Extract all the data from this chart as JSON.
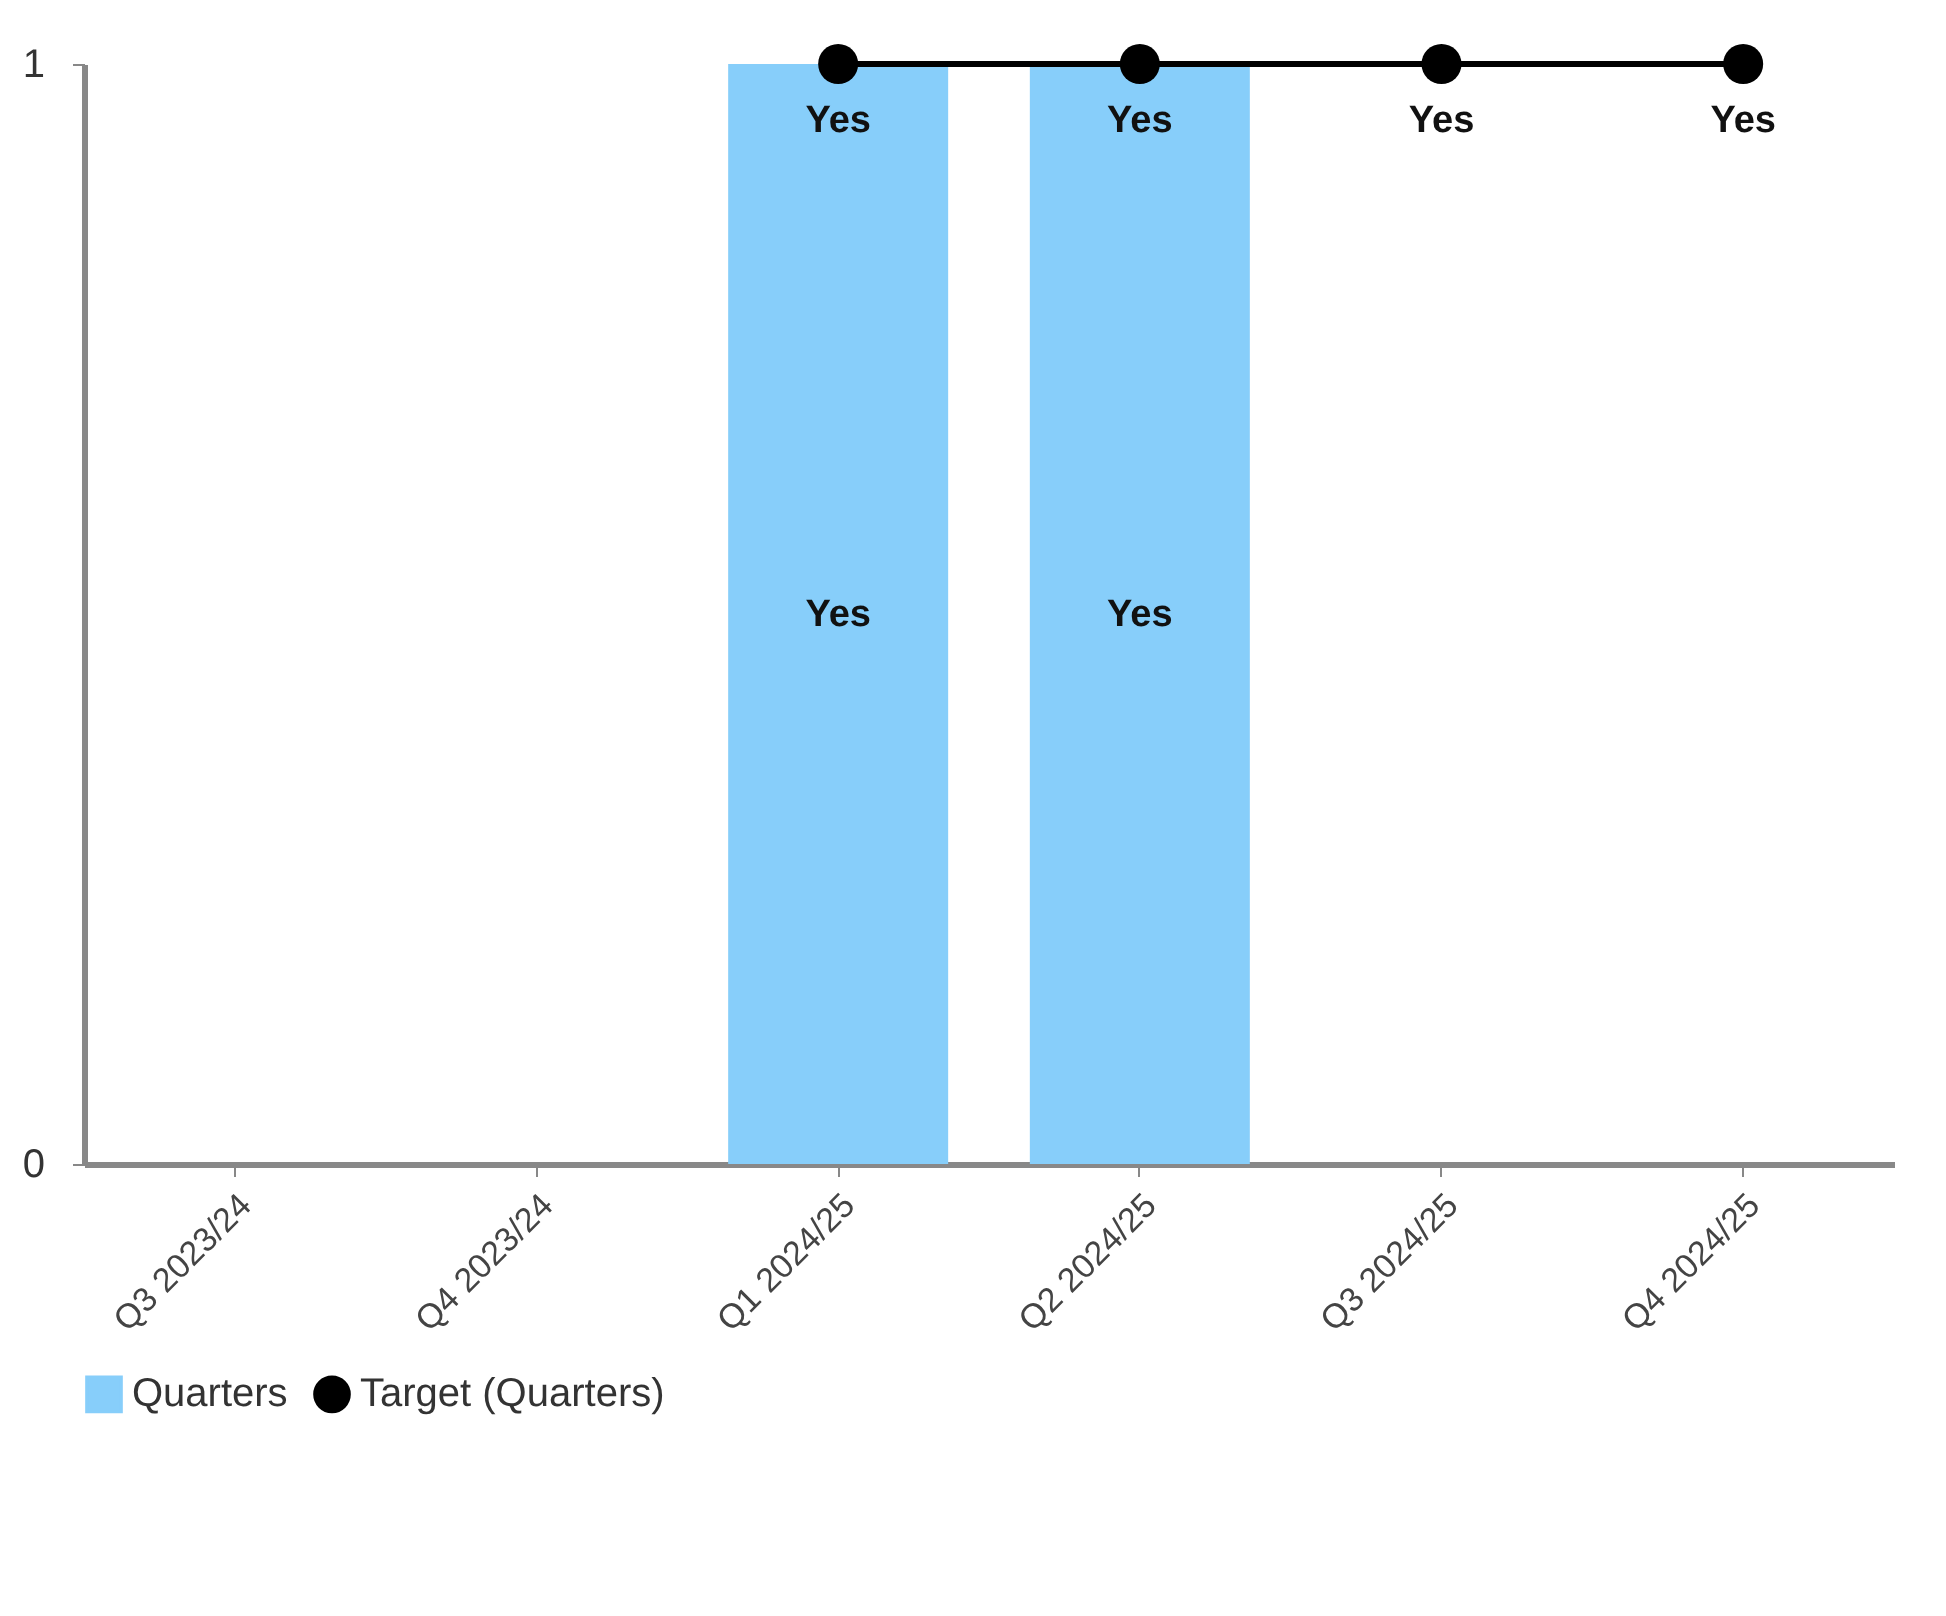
{
  "chart_data": {
    "type": "bar",
    "categories": [
      "Q3 2023/24",
      "Q4 2023/24",
      "Q1 2024/25",
      "Q2 2024/25",
      "Q3 2024/25",
      "Q4 2024/25"
    ],
    "series": [
      {
        "name": "Quarters",
        "color": "#87cefa",
        "values": [
          null,
          null,
          1,
          1,
          null,
          null
        ],
        "value_labels": [
          null,
          null,
          "Yes",
          "Yes",
          null,
          null
        ]
      },
      {
        "name": "Target (Quarters)",
        "type": "line",
        "color": "#000000",
        "marker": "circle",
        "values": [
          null,
          null,
          1,
          1,
          1,
          1
        ],
        "value_labels": [
          null,
          null,
          "Yes",
          "Yes",
          "Yes",
          "Yes"
        ]
      }
    ],
    "ylim": [
      0,
      1
    ],
    "yticks": [
      0,
      1
    ],
    "grid": false,
    "legend": "bottom"
  }
}
